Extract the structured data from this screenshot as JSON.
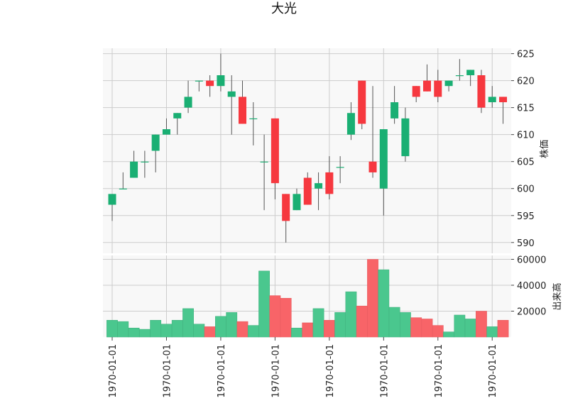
{
  "chart_data": {
    "type": "candlestick",
    "title": "大光",
    "price_panel": {
      "ylabel": "株価",
      "ylim": [
        588,
        626
      ],
      "yticks": [
        590,
        595,
        600,
        605,
        610,
        615,
        620,
        625
      ],
      "grid": true,
      "up_color": "#1aaf73",
      "down_color": "#f6383f"
    },
    "volume_panel": {
      "ylabel": "出来高",
      "ylim": [
        0,
        63000
      ],
      "yticks": [
        20000,
        40000,
        60000
      ],
      "up_color": "#4ac78e",
      "down_color": "#f86468"
    },
    "xtick_labels": [
      "1970-01-01",
      "1970-01-01",
      "1970-01-01",
      "1970-01-01",
      "1970-01-01",
      "1970-01-01",
      "1970-01-01",
      "1970-01-01"
    ],
    "xtick_positions": [
      0,
      5,
      10,
      15,
      20,
      25,
      30,
      35
    ],
    "candles": [
      {
        "open": 597,
        "high": 599,
        "low": 594,
        "close": 599,
        "volume": 13000
      },
      {
        "open": 600,
        "high": 603,
        "low": 600,
        "close": 600,
        "volume": 12000
      },
      {
        "open": 602,
        "high": 607,
        "low": 602,
        "close": 605,
        "volume": 7000
      },
      {
        "open": 605,
        "high": 607,
        "low": 602,
        "close": 605,
        "volume": 6000
      },
      {
        "open": 607,
        "high": 610,
        "low": 603,
        "close": 610,
        "volume": 13000
      },
      {
        "open": 610,
        "high": 613,
        "low": 610,
        "close": 611,
        "volume": 10000
      },
      {
        "open": 613,
        "high": 614,
        "low": 610,
        "close": 614,
        "volume": 13000
      },
      {
        "open": 615,
        "high": 620,
        "low": 614,
        "close": 617,
        "volume": 22000
      },
      {
        "open": 620,
        "high": 620,
        "low": 618,
        "close": 620,
        "volume": 10000
      },
      {
        "open": 620,
        "high": 621,
        "low": 617,
        "close": 619,
        "volume": 8000
      },
      {
        "open": 619,
        "high": 625,
        "low": 618,
        "close": 621,
        "volume": 16000
      },
      {
        "open": 617,
        "high": 621,
        "low": 610,
        "close": 618,
        "volume": 19000
      },
      {
        "open": 617,
        "high": 620,
        "low": 612,
        "close": 612,
        "volume": 12000
      },
      {
        "open": 613,
        "high": 616,
        "low": 608,
        "close": 613,
        "volume": 9000
      },
      {
        "open": 605,
        "high": 610,
        "low": 596,
        "close": 605,
        "volume": 51000
      },
      {
        "open": 613,
        "high": 613,
        "low": 598,
        "close": 601,
        "volume": 32000
      },
      {
        "open": 599,
        "high": 599,
        "low": 590,
        "close": 594,
        "volume": 30000
      },
      {
        "open": 596,
        "high": 600,
        "low": 596,
        "close": 599,
        "volume": 7000
      },
      {
        "open": 602,
        "high": 603,
        "low": 597,
        "close": 597,
        "volume": 11000
      },
      {
        "open": 600,
        "high": 603,
        "low": 596,
        "close": 601,
        "volume": 22000
      },
      {
        "open": 603,
        "high": 606,
        "low": 598,
        "close": 599,
        "volume": 13000
      },
      {
        "open": 604,
        "high": 606,
        "low": 601,
        "close": 604,
        "volume": 19000
      },
      {
        "open": 610,
        "high": 616,
        "low": 609,
        "close": 614,
        "volume": 35000
      },
      {
        "open": 620,
        "high": 620,
        "low": 611,
        "close": 612,
        "volume": 24000
      },
      {
        "open": 605,
        "high": 619,
        "low": 602,
        "close": 603,
        "volume": 60000
      },
      {
        "open": 600,
        "high": 611,
        "low": 595,
        "close": 611,
        "volume": 52000
      },
      {
        "open": 613,
        "high": 619,
        "low": 612,
        "close": 616,
        "volume": 23000
      },
      {
        "open": 606,
        "high": 615,
        "low": 605,
        "close": 613,
        "volume": 19000
      },
      {
        "open": 619,
        "high": 619,
        "low": 616,
        "close": 617,
        "volume": 15000
      },
      {
        "open": 620,
        "high": 623,
        "low": 618,
        "close": 618,
        "volume": 14000
      },
      {
        "open": 620,
        "high": 622,
        "low": 616,
        "close": 617,
        "volume": 9000
      },
      {
        "open": 619,
        "high": 620,
        "low": 618,
        "close": 620,
        "volume": 4000
      },
      {
        "open": 621,
        "high": 624,
        "low": 620,
        "close": 621,
        "volume": 17000
      },
      {
        "open": 621,
        "high": 622,
        "low": 619,
        "close": 622,
        "volume": 14000
      },
      {
        "open": 621,
        "high": 622,
        "low": 614,
        "close": 615,
        "volume": 20000
      },
      {
        "open": 616,
        "high": 619,
        "low": 615,
        "close": 617,
        "volume": 8000
      },
      {
        "open": 617,
        "high": 617,
        "low": 612,
        "close": 616,
        "volume": 13000
      }
    ]
  }
}
